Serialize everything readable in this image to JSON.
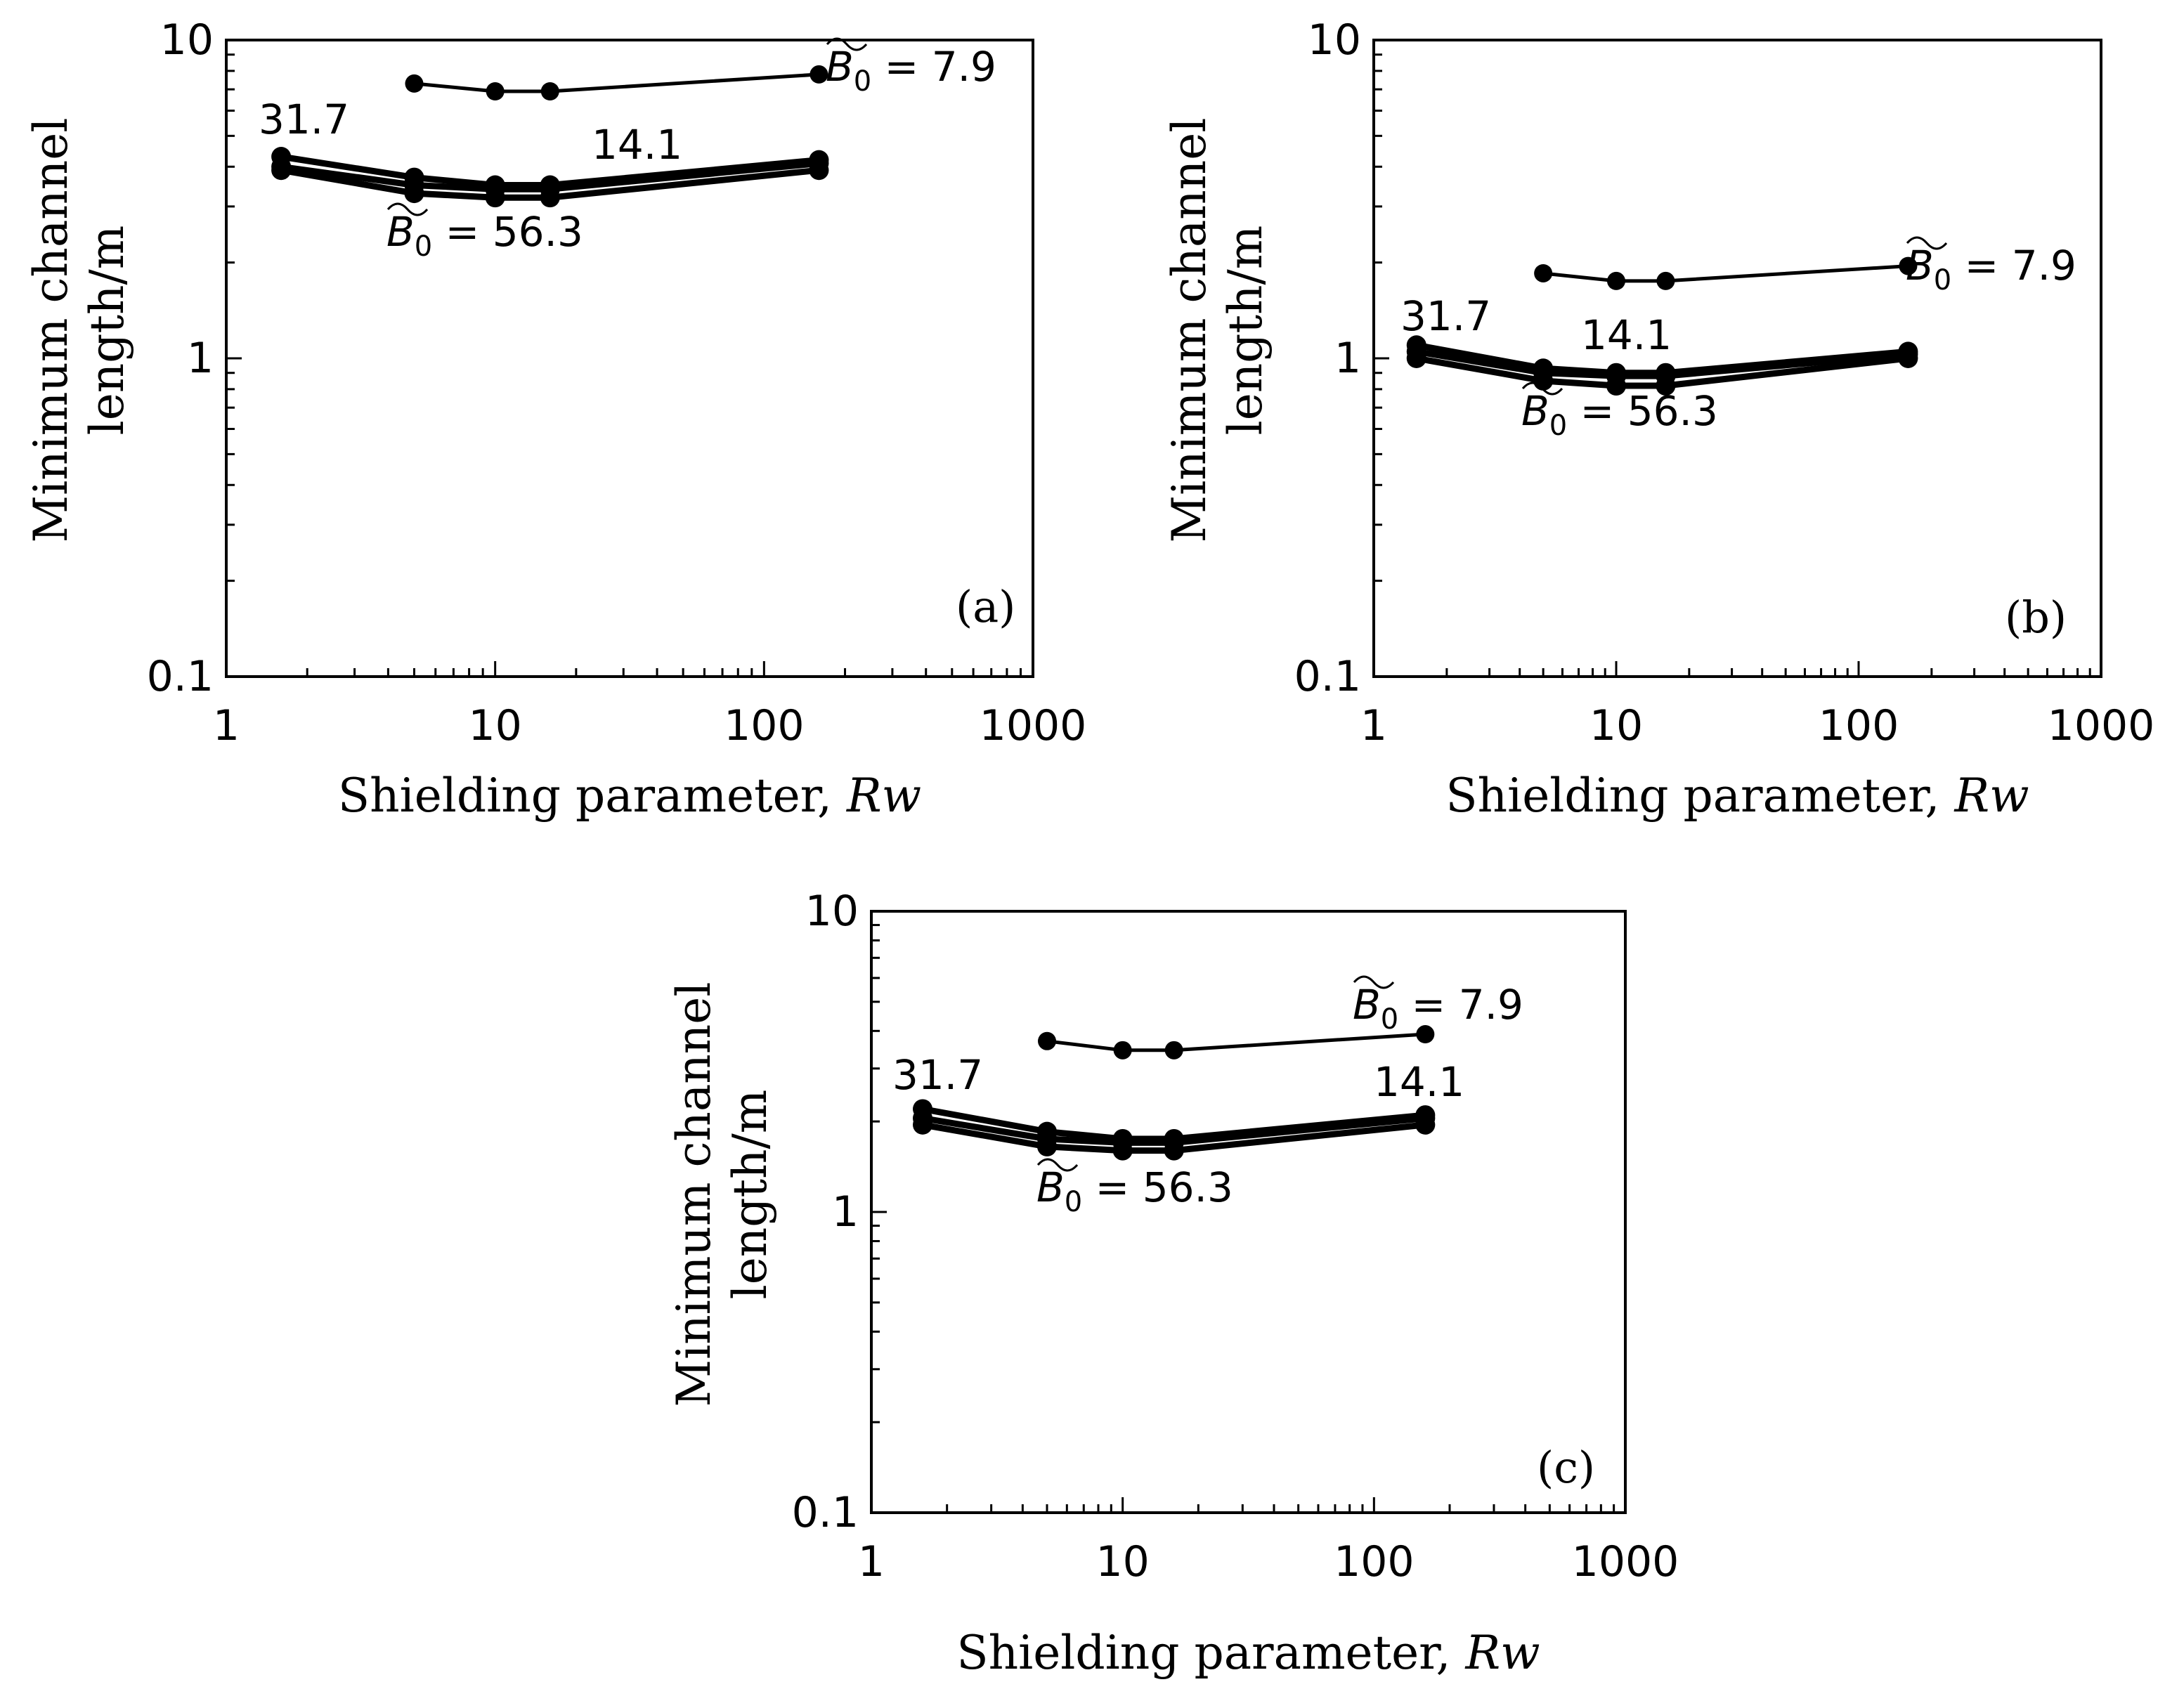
{
  "chart_data": [
    {
      "type": "line",
      "panel_label": "(a)",
      "xlabel": "Shielding parameter, ",
      "xlabel_var": "Rw",
      "ylabel_line1": "Minimum channel",
      "ylabel_line2": "length/m",
      "xscale": "log",
      "yscale": "log",
      "xlim": [
        1,
        1000
      ],
      "ylim": [
        0.1,
        10
      ],
      "x_ticks": [
        "1",
        "10",
        "100",
        "1000"
      ],
      "y_ticks": [
        "0.1",
        "1",
        "10"
      ],
      "series": [
        {
          "name": "B0 = 7.9",
          "x": [
            5,
            10,
            16,
            160
          ],
          "y": [
            7.3,
            6.9,
            6.9,
            7.8
          ]
        },
        {
          "name": "B0 = 14.1",
          "x": [
            1.6,
            5,
            10,
            16,
            160
          ],
          "y": [
            4.0,
            3.5,
            3.4,
            3.4,
            4.1
          ]
        },
        {
          "name": "B0 = 31.7",
          "x": [
            1.6,
            5,
            10,
            16,
            160
          ],
          "y": [
            4.3,
            3.7,
            3.5,
            3.5,
            4.2
          ]
        },
        {
          "name": "B0 = 56.3",
          "x": [
            1.6,
            5,
            10,
            16,
            160
          ],
          "y": [
            3.9,
            3.3,
            3.2,
            3.2,
            3.9
          ]
        }
      ],
      "annotations": {
        "b79": "= 7.9",
        "b141": "14.1",
        "b317": "31.7",
        "b563": "= 56.3",
        "bsym": "B",
        "bsub": "0"
      }
    },
    {
      "type": "line",
      "panel_label": "(b)",
      "xlabel": "Shielding parameter, ",
      "xlabel_var": "Rw",
      "ylabel_line1": "Minimum channel",
      "ylabel_line2": "length/m",
      "xscale": "log",
      "yscale": "log",
      "xlim": [
        1,
        1000
      ],
      "ylim": [
        0.1,
        10
      ],
      "x_ticks": [
        "1",
        "10",
        "100",
        "1000"
      ],
      "y_ticks": [
        "0.1",
        "1",
        "10"
      ],
      "series": [
        {
          "name": "B0 = 7.9",
          "x": [
            5,
            10,
            16,
            160
          ],
          "y": [
            1.85,
            1.75,
            1.75,
            1.95
          ]
        },
        {
          "name": "B0 = 14.1",
          "x": [
            1.5,
            5,
            10,
            16,
            160
          ],
          "y": [
            1.05,
            0.9,
            0.88,
            0.88,
            1.03
          ]
        },
        {
          "name": "B0 = 31.7",
          "x": [
            1.5,
            5,
            10,
            16,
            160
          ],
          "y": [
            1.1,
            0.93,
            0.9,
            0.9,
            1.05
          ]
        },
        {
          "name": "B0 = 56.3",
          "x": [
            1.5,
            5,
            10,
            16,
            160
          ],
          "y": [
            1.0,
            0.85,
            0.82,
            0.82,
            1.0
          ]
        }
      ],
      "annotations": {
        "b79": "= 7.9",
        "b141": "14.1",
        "b317": "31.7",
        "b563": "= 56.3",
        "bsym": "B",
        "bsub": "0"
      }
    },
    {
      "type": "line",
      "panel_label": "(c)",
      "xlabel": "Shielding parameter, ",
      "xlabel_var": "Rw",
      "ylabel_line1": "Minimum channel",
      "ylabel_line2": "length/m",
      "xscale": "log",
      "yscale": "log",
      "xlim": [
        1,
        1000
      ],
      "ylim": [
        0.1,
        10
      ],
      "x_ticks": [
        "1",
        "10",
        "100",
        "1000"
      ],
      "y_ticks": [
        "0.1",
        "1",
        "10"
      ],
      "series": [
        {
          "name": "B0 = 7.9",
          "x": [
            5,
            10,
            16,
            160
          ],
          "y": [
            3.7,
            3.45,
            3.45,
            3.9
          ]
        },
        {
          "name": "B0 = 14.1",
          "x": [
            1.6,
            5,
            10,
            16,
            160
          ],
          "y": [
            2.05,
            1.75,
            1.7,
            1.7,
            2.05
          ]
        },
        {
          "name": "B0 = 31.7",
          "x": [
            1.6,
            5,
            10,
            16,
            160
          ],
          "y": [
            2.2,
            1.85,
            1.75,
            1.75,
            2.1
          ]
        },
        {
          "name": "B0 = 56.3",
          "x": [
            1.6,
            5,
            10,
            16,
            160
          ],
          "y": [
            1.95,
            1.65,
            1.6,
            1.6,
            1.95
          ]
        }
      ],
      "annotations": {
        "b79": "= 7.9",
        "b141": "14.1",
        "b317": "31.7",
        "b563": "= 56.3",
        "bsym": "B",
        "bsub": "0"
      }
    }
  ]
}
